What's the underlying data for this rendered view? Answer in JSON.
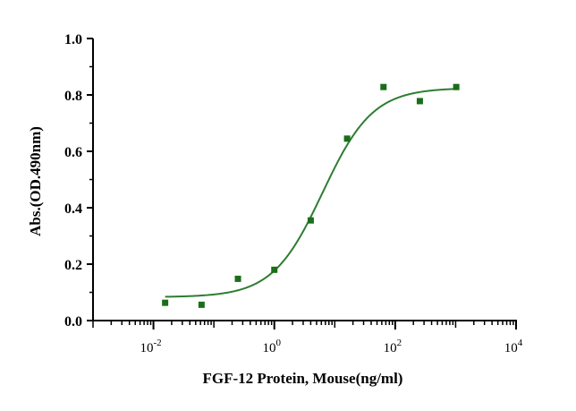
{
  "chart_data": {
    "type": "scatter",
    "title": "",
    "xlabel": "FGF-12 Protein, Mouse(ng/ml)",
    "ylabel": "Abs.(OD.490nm)",
    "x_scale": "log10",
    "xlim": [
      0.001,
      10000
    ],
    "ylim": [
      0,
      1.0
    ],
    "y_ticks": [
      "0.0",
      "0.2",
      "0.4",
      "0.6",
      "0.8",
      "1.0"
    ],
    "x_ticks": [
      {
        "base": "10",
        "exp": "-2",
        "value": 0.01
      },
      {
        "base": "10",
        "exp": "0",
        "value": 1
      },
      {
        "base": "10",
        "exp": "2",
        "value": 100
      },
      {
        "base": "10",
        "exp": "4",
        "value": 10000
      }
    ],
    "series": [
      {
        "name": "FGF-12 Protein, Mouse",
        "color": "#1a6e1a",
        "marker": "square",
        "x": [
          0.0156,
          0.0625,
          0.25,
          1,
          4,
          16,
          64,
          256,
          1024
        ],
        "y": [
          0.063,
          0.056,
          0.148,
          0.18,
          0.355,
          0.645,
          0.828,
          0.778,
          0.828
        ]
      }
    ],
    "fit": {
      "type": "4PL",
      "color": "#2e7d32",
      "bottom": 0.083,
      "top": 0.825,
      "ec50": 6.3,
      "hill": 1.05
    }
  }
}
